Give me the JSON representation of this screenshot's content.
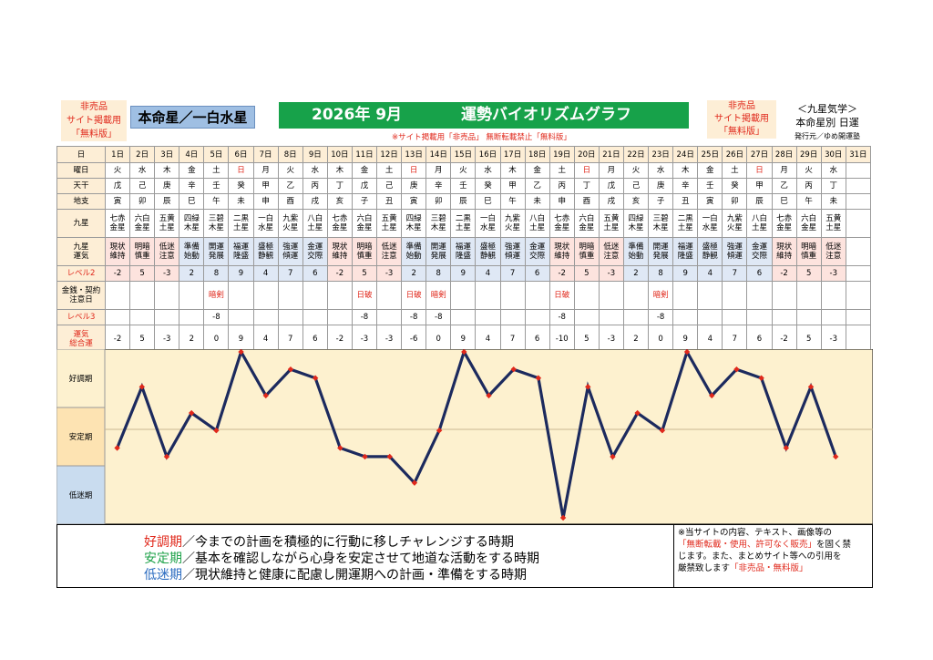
{
  "header": {
    "notice_left": [
      "非売品",
      "サイト掲載用",
      "「無料版」"
    ],
    "star": "本命星／一白水星",
    "title_year": "2026年 9月",
    "title_text": "運勢バイオリズムグラフ",
    "subnotice": "※サイト掲載用「非売品」 無断転載禁止「無料版」",
    "notice_right": [
      "非売品",
      "サイト掲載用",
      "「無料版」"
    ],
    "right_title": "＜九星気学＞",
    "right_sub": "本命星別 日運",
    "publisher": "発行元／ゆめ開運塾"
  },
  "row_labels": {
    "day": "日",
    "weekday": "曜日",
    "kan": "天干",
    "shi": "地支",
    "kyusei": "九星",
    "kyusei_unki": [
      "九星",
      "運気"
    ],
    "level2": "レベル2",
    "money": [
      "金銭・契約",
      "注意日"
    ],
    "level3": "レベル3",
    "total": [
      "運気",
      "総合運"
    ]
  },
  "days": [
    "1日",
    "2日",
    "3日",
    "4日",
    "5日",
    "6日",
    "7日",
    "8日",
    "9日",
    "10日",
    "11日",
    "12日",
    "13日",
    "14日",
    "15日",
    "16日",
    "17日",
    "18日",
    "19日",
    "20日",
    "21日",
    "22日",
    "23日",
    "24日",
    "25日",
    "26日",
    "27日",
    "28日",
    "29日",
    "30日",
    "31日"
  ],
  "weekdays": [
    "火",
    "水",
    "木",
    "金",
    "土",
    "日",
    "月",
    "火",
    "水",
    "木",
    "金",
    "土",
    "日",
    "月",
    "火",
    "水",
    "木",
    "金",
    "土",
    "日",
    "月",
    "火",
    "水",
    "木",
    "金",
    "土",
    "日",
    "月",
    "火",
    "水",
    ""
  ],
  "kan": [
    "戊",
    "己",
    "庚",
    "辛",
    "壬",
    "癸",
    "甲",
    "乙",
    "丙",
    "丁",
    "戊",
    "己",
    "庚",
    "辛",
    "壬",
    "癸",
    "甲",
    "乙",
    "丙",
    "丁",
    "戊",
    "己",
    "庚",
    "辛",
    "壬",
    "癸",
    "甲",
    "乙",
    "丙",
    "丁",
    ""
  ],
  "shi": [
    "寅",
    "卯",
    "辰",
    "巳",
    "午",
    "未",
    "申",
    "酉",
    "戌",
    "亥",
    "子",
    "丑",
    "寅",
    "卯",
    "辰",
    "巳",
    "午",
    "未",
    "申",
    "酉",
    "戌",
    "亥",
    "子",
    "丑",
    "寅",
    "卯",
    "辰",
    "巳",
    "午",
    "未",
    ""
  ],
  "kyusei": [
    [
      "七赤",
      "金星"
    ],
    [
      "六白",
      "金星"
    ],
    [
      "五黄",
      "土星"
    ],
    [
      "四緑",
      "木星"
    ],
    [
      "三碧",
      "木星"
    ],
    [
      "二黒",
      "土星"
    ],
    [
      "一白",
      "水星"
    ],
    [
      "九紫",
      "火星"
    ],
    [
      "八白",
      "土星"
    ],
    [
      "七赤",
      "金星"
    ],
    [
      "六白",
      "金星"
    ],
    [
      "五黄",
      "土星"
    ],
    [
      "四緑",
      "木星"
    ],
    [
      "三碧",
      "木星"
    ],
    [
      "二黒",
      "土星"
    ],
    [
      "一白",
      "水星"
    ],
    [
      "九紫",
      "火星"
    ],
    [
      "八白",
      "土星"
    ],
    [
      "七赤",
      "金星"
    ],
    [
      "六白",
      "金星"
    ],
    [
      "五黄",
      "土星"
    ],
    [
      "四緑",
      "木星"
    ],
    [
      "三碧",
      "木星"
    ],
    [
      "二黒",
      "土星"
    ],
    [
      "一白",
      "水星"
    ],
    [
      "九紫",
      "火星"
    ],
    [
      "八白",
      "土星"
    ],
    [
      "七赤",
      "金星"
    ],
    [
      "六白",
      "金星"
    ],
    [
      "五黄",
      "土星"
    ],
    [
      "",
      ""
    ]
  ],
  "unki": [
    [
      "現状",
      "維持"
    ],
    [
      "明暗",
      "慎重"
    ],
    [
      "低迷",
      "注意"
    ],
    [
      "準備",
      "始動"
    ],
    [
      "開運",
      "発展"
    ],
    [
      "福運",
      "隆盛"
    ],
    [
      "盛極",
      "静観"
    ],
    [
      "強運",
      "傾運"
    ],
    [
      "金運",
      "交際"
    ],
    [
      "現状",
      "維持"
    ],
    [
      "明暗",
      "慎重"
    ],
    [
      "低迷",
      "注意"
    ],
    [
      "準備",
      "始動"
    ],
    [
      "開運",
      "発展"
    ],
    [
      "福運",
      "隆盛"
    ],
    [
      "盛極",
      "静観"
    ],
    [
      "強運",
      "傾運"
    ],
    [
      "金運",
      "交際"
    ],
    [
      "現状",
      "維持"
    ],
    [
      "明暗",
      "慎重"
    ],
    [
      "低迷",
      "注意"
    ],
    [
      "準備",
      "始動"
    ],
    [
      "開運",
      "発展"
    ],
    [
      "福運",
      "隆盛"
    ],
    [
      "盛極",
      "静観"
    ],
    [
      "強運",
      "傾運"
    ],
    [
      "金運",
      "交際"
    ],
    [
      "現状",
      "維持"
    ],
    [
      "明暗",
      "慎重"
    ],
    [
      "低迷",
      "注意"
    ],
    [
      "",
      ""
    ]
  ],
  "level2": [
    "-2",
    "5",
    "-3",
    "2",
    "8",
    "9",
    "4",
    "7",
    "6",
    "-2",
    "5",
    "-3",
    "2",
    "8",
    "9",
    "4",
    "7",
    "6",
    "-2",
    "5",
    "-3",
    "2",
    "8",
    "9",
    "4",
    "7",
    "6",
    "-2",
    "5",
    "-3",
    ""
  ],
  "money": [
    "",
    "",
    "",
    "",
    "暗剣",
    "",
    "",
    "",
    "",
    "",
    "日破",
    "",
    "日破",
    "暗剣",
    "",
    "",
    "",
    "",
    "日破",
    "",
    "",
    "",
    "暗剣",
    "",
    "",
    "",
    "",
    "",
    "",
    "",
    ""
  ],
  "level3": [
    "",
    "",
    "",
    "",
    "-8",
    "",
    "",
    "",
    "",
    "",
    "-8",
    "",
    "-8",
    "-8",
    "",
    "",
    "",
    "",
    "-8",
    "",
    "",
    "",
    "-8",
    "",
    "",
    "",
    "",
    "",
    "",
    "",
    ""
  ],
  "total": [
    "-2",
    "5",
    "-3",
    "2",
    "0",
    "9",
    "4",
    "7",
    "6",
    "-2",
    "-3",
    "-3",
    "-6",
    "0",
    "9",
    "4",
    "7",
    "6",
    "-10",
    "5",
    "-3",
    "2",
    "0",
    "9",
    "4",
    "7",
    "6",
    "-2",
    "5",
    "-3",
    ""
  ],
  "zones": {
    "good": "好調期",
    "stable": "安定期",
    "low": "低迷期"
  },
  "legend": [
    {
      "head": "好調期",
      "text": "／今までの計画を積極的に行動に移しチャレンジする時期",
      "color": "#e0281b"
    },
    {
      "head": "安定期",
      "text": "／基本を確認しながら心身を安定させて地道な活動をする時期",
      "color": "#1fa24a"
    },
    {
      "head": "低迷期",
      "text": "／現状維持と健康に配慮し開運期への計画・準備をする時期",
      "color": "#2b6cc0"
    }
  ],
  "note": {
    "line1": "※当サイトの内容、テキスト、画像等の",
    "line2_red": "「無断転載・使用、許可なく販売」",
    "line2_rest": "を固く禁",
    "line3": "じます。また、まとめサイト等への引用を",
    "line4": "厳禁致します",
    "line4_red": "「非売品・無料版」"
  },
  "colors": {
    "line": "#1c2a5e",
    "marker": "#e0281b",
    "good_bg": "#fdf1cf",
    "stable_bg": "#fde3b2",
    "low_bg": "#c9dcef",
    "plot_bg": "#fdf1cf",
    "title_bg": "#17a24a",
    "star_bg": "#9fbfe3"
  },
  "chart_data": {
    "type": "line",
    "title": "運勢バイオリズムグラフ",
    "x": [
      "1日",
      "2日",
      "3日",
      "4日",
      "5日",
      "6日",
      "7日",
      "8日",
      "9日",
      "10日",
      "11日",
      "12日",
      "13日",
      "14日",
      "15日",
      "16日",
      "17日",
      "18日",
      "19日",
      "20日",
      "21日",
      "22日",
      "23日",
      "24日",
      "25日",
      "26日",
      "27日",
      "28日",
      "29日",
      "30日"
    ],
    "series": [
      {
        "values": [
          -2,
          5,
          -3,
          2,
          0,
          9,
          4,
          7,
          6,
          -2,
          -3,
          -3,
          -6,
          0,
          9,
          4,
          7,
          6,
          -10,
          5,
          -3,
          2,
          0,
          9,
          4,
          7,
          6,
          -2,
          5,
          -3
        ]
      }
    ],
    "ylim": [
      -10,
      9
    ],
    "zones": [
      "好調期",
      "安定期",
      "低迷期"
    ]
  }
}
